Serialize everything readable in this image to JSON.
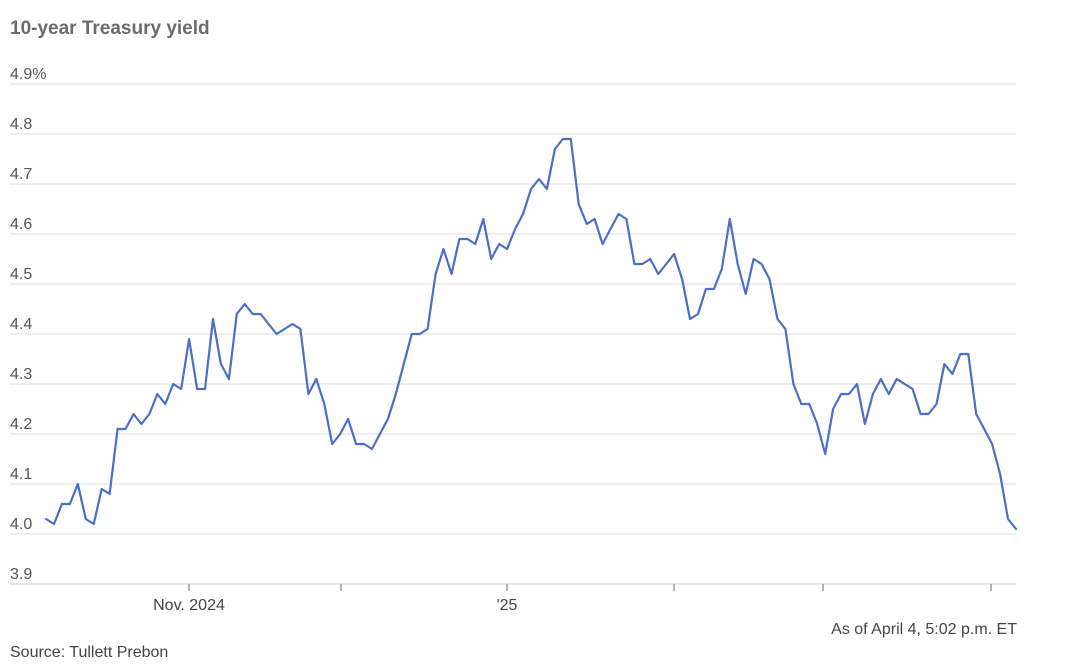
{
  "title": "10-year Treasury yield",
  "as_of": "As of April 4, 5:02 p.m. ET",
  "source": "Source: Tullett Prebon",
  "colors": {
    "line": "#4a6fc9",
    "grid": "#dddddd"
  },
  "chart_data": {
    "type": "line",
    "title": "10-year Treasury yield",
    "xlabel": "",
    "ylabel": "",
    "ylim": [
      3.9,
      4.9
    ],
    "y_ticks": [
      "4.9%",
      "4.8",
      "4.7",
      "4.6",
      "4.5",
      "4.4",
      "4.3",
      "4.2",
      "4.1",
      "4.0",
      "3.9"
    ],
    "x_tick_labels": [
      "Nov. 2024",
      "",
      "'25",
      "",
      "",
      ""
    ],
    "grid": true,
    "legend": "none",
    "series": [
      {
        "values": [
          4.03,
          4.02,
          4.06,
          4.06,
          4.1,
          4.03,
          4.02,
          4.09,
          4.08,
          4.21,
          4.21,
          4.24,
          4.22,
          4.24,
          4.28,
          4.26,
          4.3,
          4.29,
          4.39,
          4.29,
          4.29,
          4.43,
          4.34,
          4.31,
          4.44,
          4.46,
          4.44,
          4.44,
          4.42,
          4.4,
          4.41,
          4.42,
          4.41,
          4.28,
          4.31,
          4.26,
          4.18,
          4.2,
          4.23,
          4.18,
          4.18,
          4.17,
          4.2,
          4.23,
          4.28,
          4.34,
          4.4,
          4.4,
          4.41,
          4.52,
          4.57,
          4.52,
          4.59,
          4.59,
          4.58,
          4.63,
          4.55,
          4.58,
          4.57,
          4.61,
          4.64,
          4.69,
          4.71,
          4.69,
          4.77,
          4.79,
          4.79,
          4.66,
          4.62,
          4.63,
          4.58,
          4.61,
          4.64,
          4.63,
          4.54,
          4.54,
          4.55,
          4.52,
          4.54,
          4.56,
          4.51,
          4.43,
          4.44,
          4.49,
          4.49,
          4.53,
          4.63,
          4.54,
          4.48,
          4.55,
          4.54,
          4.51,
          4.43,
          4.41,
          4.3,
          4.26,
          4.26,
          4.22,
          4.16,
          4.25,
          4.28,
          4.28,
          4.3,
          4.22,
          4.28,
          4.31,
          4.28,
          4.31,
          4.3,
          4.29,
          4.24,
          4.24,
          4.26,
          4.34,
          4.32,
          4.36,
          4.36,
          4.24,
          4.21,
          4.18,
          4.12,
          4.03,
          4.01
        ]
      }
    ]
  }
}
